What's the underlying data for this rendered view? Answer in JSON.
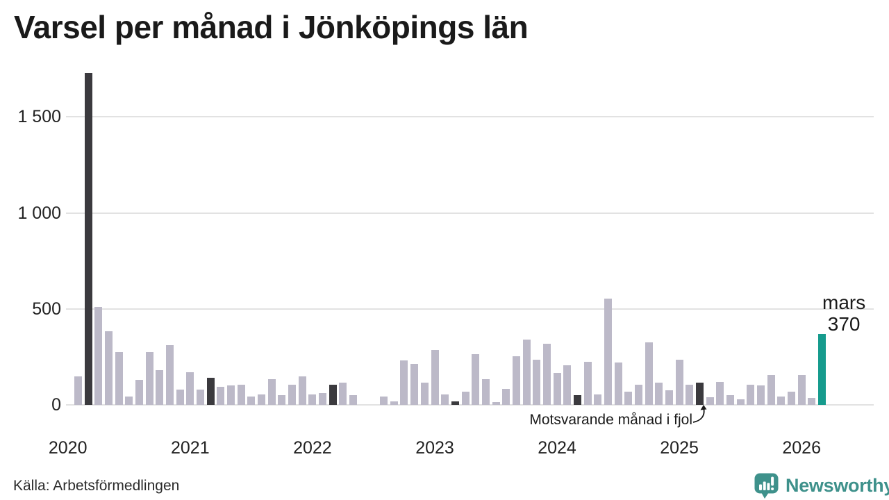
{
  "title": "Varsel per månad i Jönköpings län",
  "source_note": "Källa: Arbetsförmedlingen",
  "brand": {
    "name": "Newsworthy",
    "color": "#3e918b"
  },
  "annotation": {
    "text": "Motsvarande månad i fjol",
    "target_ym": "2025-03"
  },
  "highlight_label": {
    "month": "mars",
    "value": "370"
  },
  "colors": {
    "bar": "#bcb9c8",
    "compare": "#3b3a3e",
    "current": "#169b8d",
    "grid": "#e2e2e2",
    "text": "#1a1a1a"
  },
  "chart_data": {
    "type": "bar",
    "title": "Varsel per månad i Jönköpings län",
    "xlabel": "",
    "ylabel": "",
    "ylim": [
      0,
      1750
    ],
    "grid": true,
    "yticks": [
      {
        "value": 0,
        "label": "0"
      },
      {
        "value": 500,
        "label": "500"
      },
      {
        "value": 1000,
        "label": "1 000"
      },
      {
        "value": 1500,
        "label": "1 500"
      }
    ],
    "year_ticks": [
      {
        "label": "2020",
        "month_index": -1
      },
      {
        "label": "2021",
        "month_index": 11
      },
      {
        "label": "2022",
        "month_index": 23
      },
      {
        "label": "2023",
        "month_index": 35
      },
      {
        "label": "2024",
        "month_index": 47
      },
      {
        "label": "2025",
        "month_index": 59
      },
      {
        "label": "2026",
        "month_index": 71
      }
    ],
    "months": [
      {
        "ym": "2020-02",
        "value": 150
      },
      {
        "ym": "2020-03",
        "value": 1730,
        "type": "compare"
      },
      {
        "ym": "2020-04",
        "value": 510
      },
      {
        "ym": "2020-05",
        "value": 385
      },
      {
        "ym": "2020-06",
        "value": 275
      },
      {
        "ym": "2020-07",
        "value": 45
      },
      {
        "ym": "2020-08",
        "value": 130
      },
      {
        "ym": "2020-09",
        "value": 275
      },
      {
        "ym": "2020-10",
        "value": 180
      },
      {
        "ym": "2020-11",
        "value": 310
      },
      {
        "ym": "2020-12",
        "value": 80
      },
      {
        "ym": "2021-01",
        "value": 170
      },
      {
        "ym": "2021-02",
        "value": 80
      },
      {
        "ym": "2021-03",
        "value": 140,
        "type": "compare"
      },
      {
        "ym": "2021-04",
        "value": 95
      },
      {
        "ym": "2021-05",
        "value": 100
      },
      {
        "ym": "2021-06",
        "value": 105
      },
      {
        "ym": "2021-07",
        "value": 45
      },
      {
        "ym": "2021-08",
        "value": 55
      },
      {
        "ym": "2021-09",
        "value": 135
      },
      {
        "ym": "2021-10",
        "value": 50
      },
      {
        "ym": "2021-11",
        "value": 105
      },
      {
        "ym": "2021-12",
        "value": 150
      },
      {
        "ym": "2022-01",
        "value": 55
      },
      {
        "ym": "2022-02",
        "value": 60
      },
      {
        "ym": "2022-03",
        "value": 105,
        "type": "compare"
      },
      {
        "ym": "2022-04",
        "value": 115
      },
      {
        "ym": "2022-05",
        "value": 50
      },
      {
        "ym": "2022-06",
        "value": 0
      },
      {
        "ym": "2022-07",
        "value": 0
      },
      {
        "ym": "2022-08",
        "value": 45
      },
      {
        "ym": "2022-09",
        "value": 20
      },
      {
        "ym": "2022-10",
        "value": 230
      },
      {
        "ym": "2022-11",
        "value": 215
      },
      {
        "ym": "2022-12",
        "value": 115
      },
      {
        "ym": "2023-01",
        "value": 285
      },
      {
        "ym": "2023-02",
        "value": 55
      },
      {
        "ym": "2023-03",
        "value": 20,
        "type": "compare"
      },
      {
        "ym": "2023-04",
        "value": 70
      },
      {
        "ym": "2023-05",
        "value": 265
      },
      {
        "ym": "2023-06",
        "value": 135
      },
      {
        "ym": "2023-07",
        "value": 15
      },
      {
        "ym": "2023-08",
        "value": 85
      },
      {
        "ym": "2023-09",
        "value": 255
      },
      {
        "ym": "2023-10",
        "value": 340
      },
      {
        "ym": "2023-11",
        "value": 235
      },
      {
        "ym": "2023-12",
        "value": 320
      },
      {
        "ym": "2024-01",
        "value": 165
      },
      {
        "ym": "2024-02",
        "value": 205
      },
      {
        "ym": "2024-03",
        "value": 50,
        "type": "compare"
      },
      {
        "ym": "2024-04",
        "value": 225
      },
      {
        "ym": "2024-05",
        "value": 55
      },
      {
        "ym": "2024-06",
        "value": 555
      },
      {
        "ym": "2024-07",
        "value": 220
      },
      {
        "ym": "2024-08",
        "value": 70
      },
      {
        "ym": "2024-09",
        "value": 105
      },
      {
        "ym": "2024-10",
        "value": 325
      },
      {
        "ym": "2024-11",
        "value": 115
      },
      {
        "ym": "2024-12",
        "value": 75
      },
      {
        "ym": "2025-01",
        "value": 235
      },
      {
        "ym": "2025-02",
        "value": 105
      },
      {
        "ym": "2025-03",
        "value": 115,
        "type": "compare"
      },
      {
        "ym": "2025-04",
        "value": 40
      },
      {
        "ym": "2025-05",
        "value": 120
      },
      {
        "ym": "2025-06",
        "value": 50
      },
      {
        "ym": "2025-07",
        "value": 30
      },
      {
        "ym": "2025-08",
        "value": 105
      },
      {
        "ym": "2025-09",
        "value": 100
      },
      {
        "ym": "2025-10",
        "value": 155
      },
      {
        "ym": "2025-11",
        "value": 45
      },
      {
        "ym": "2025-12",
        "value": 70
      },
      {
        "ym": "2026-01",
        "value": 155
      },
      {
        "ym": "2026-02",
        "value": 35
      },
      {
        "ym": "2026-03",
        "value": 370,
        "type": "current"
      }
    ]
  }
}
